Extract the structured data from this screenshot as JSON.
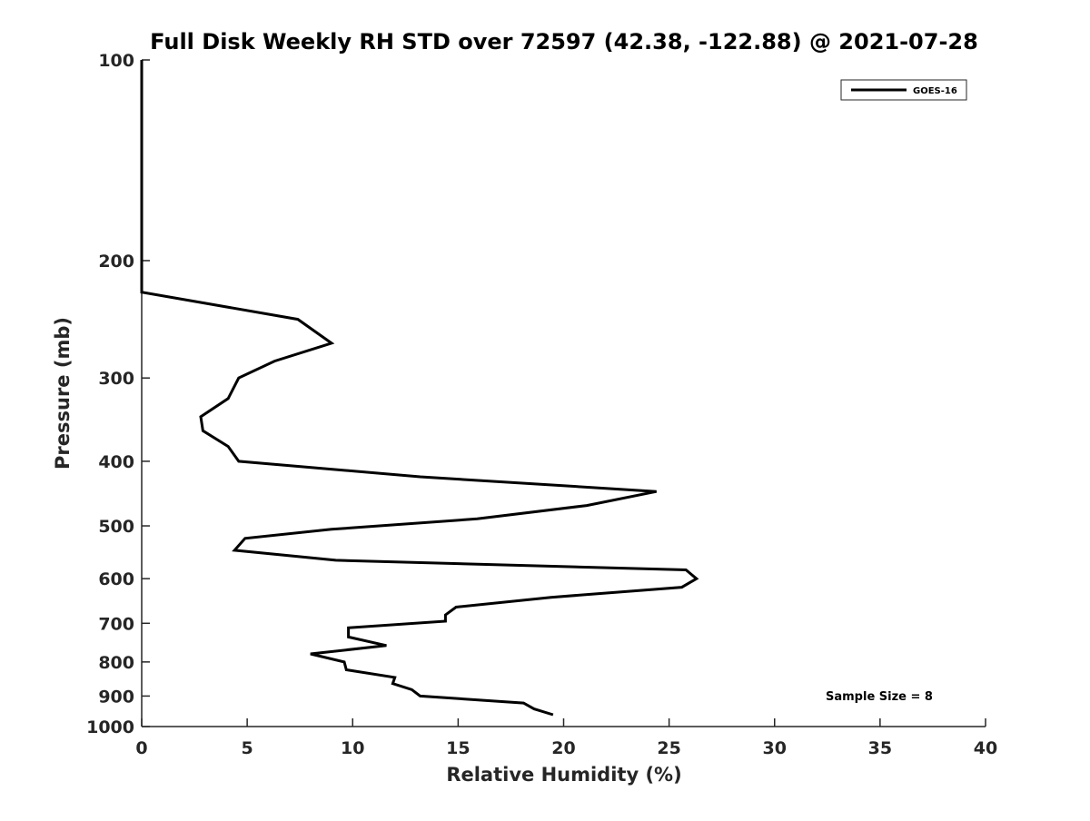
{
  "chart_data": {
    "type": "line",
    "title": "Full Disk Weekly RH STD over 72597 (42.38, -122.88) @ 2021-07-28",
    "xlabel": "Relative Humidity (%)",
    "ylabel": "Pressure (mb)",
    "xlim": [
      0,
      40
    ],
    "ylim": [
      100,
      1000
    ],
    "y_scale": "log",
    "y_inverted": true,
    "grid": false,
    "legend_position": "top-right",
    "x_ticks": [
      0,
      5,
      10,
      15,
      20,
      25,
      30,
      35,
      40
    ],
    "x_tick_labels": [
      "0",
      "5",
      "10",
      "15",
      "20",
      "25",
      "30",
      "35",
      "40"
    ],
    "y_ticks": [
      100,
      200,
      300,
      400,
      500,
      600,
      700,
      800,
      900,
      1000
    ],
    "y_tick_labels": [
      "100",
      "200",
      "300",
      "400",
      "500",
      "600",
      "700",
      "800",
      "900",
      "1000"
    ],
    "series": [
      {
        "name": "GOES-16",
        "color": "#000000",
        "points": [
          [
            0,
            100
          ],
          [
            0,
            200
          ],
          [
            0,
            223
          ],
          [
            7.4,
            245
          ],
          [
            9.0,
            266
          ],
          [
            6.3,
            283
          ],
          [
            4.6,
            300
          ],
          [
            4.1,
            322
          ],
          [
            2.8,
            343
          ],
          [
            2.9,
            360
          ],
          [
            4.1,
            380
          ],
          [
            4.6,
            400
          ],
          [
            13.2,
            422
          ],
          [
            24.4,
            444
          ],
          [
            21.1,
            466
          ],
          [
            15.9,
            488
          ],
          [
            9.0,
            506
          ],
          [
            4.9,
            522
          ],
          [
            4.4,
            544
          ],
          [
            9.2,
            563
          ],
          [
            25.8,
            582
          ],
          [
            26.3,
            600
          ],
          [
            25.6,
            618
          ],
          [
            19.4,
            640
          ],
          [
            14.9,
            662
          ],
          [
            14.4,
            680
          ],
          [
            14.4,
            695
          ],
          [
            9.8,
            711
          ],
          [
            9.8,
            734
          ],
          [
            11.6,
            756
          ],
          [
            8.0,
            778
          ],
          [
            9.6,
            800
          ],
          [
            9.7,
            822
          ],
          [
            12.0,
            844
          ],
          [
            11.9,
            862
          ],
          [
            12.8,
            880
          ],
          [
            13.2,
            900
          ],
          [
            18.1,
            922
          ],
          [
            18.6,
            941
          ],
          [
            19.5,
            960
          ]
        ]
      }
    ],
    "annotation": "Sample Size = 8"
  }
}
